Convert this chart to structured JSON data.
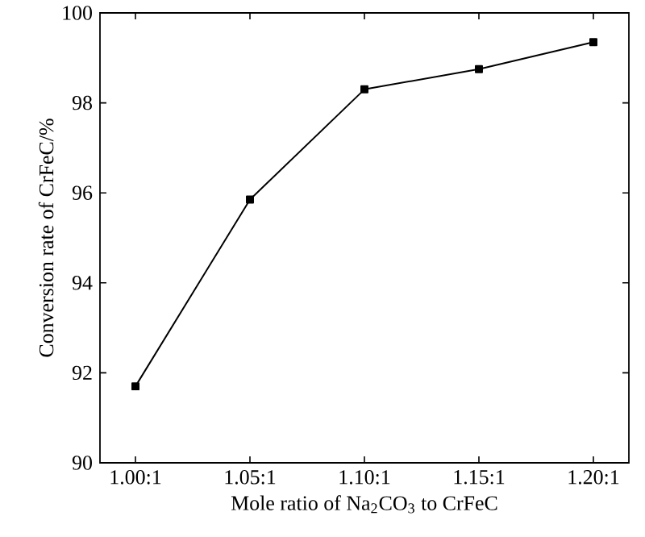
{
  "chart_data": {
    "type": "line",
    "xlabel": "Mole ratio of Na$_{2}$CO$_{3}$ to CrFeC",
    "ylabel": "Conversion rate of CrFeC/%",
    "categories": [
      "1.00:1",
      "1.05:1",
      "1.10:1",
      "1.15:1",
      "1.20:1"
    ],
    "series": [
      {
        "color": "#000000",
        "values": [
          91.7,
          95.85,
          98.3,
          98.75,
          99.35
        ]
      }
    ],
    "ylim": [
      90,
      100
    ],
    "yticks": [
      90,
      92,
      94,
      96,
      98,
      100
    ],
    "marker": "square",
    "line_style": "solid"
  }
}
